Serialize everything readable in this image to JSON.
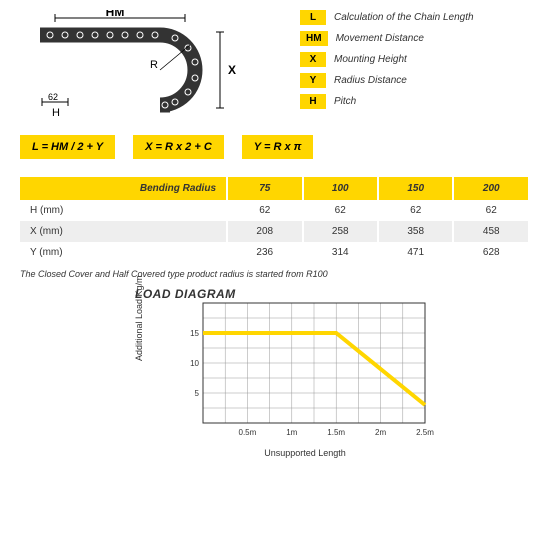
{
  "legend": [
    {
      "key": "L",
      "desc": "Calculation of the Chain Length"
    },
    {
      "key": "HM",
      "desc": "Movement Distance"
    },
    {
      "key": "X",
      "desc": "Mounting Height"
    },
    {
      "key": "Y",
      "desc": "Radius Distance"
    },
    {
      "key": "H",
      "desc": "Pitch"
    }
  ],
  "diagram": {
    "labels": {
      "top": "HM",
      "radius": "R",
      "right": "X",
      "bottomNum": "62",
      "bottomLet": "H"
    }
  },
  "formulas": [
    "L = HM / 2 + Y",
    "X = R x 2 + C",
    "Y = R x π"
  ],
  "table": {
    "headers": [
      "Bending Radius",
      "75",
      "100",
      "150",
      "200"
    ],
    "rows": [
      {
        "label": "H (mm)",
        "cells": [
          "62",
          "62",
          "62",
          "62"
        ]
      },
      {
        "label": "X (mm)",
        "cells": [
          "208",
          "258",
          "358",
          "458"
        ]
      },
      {
        "label": "Y (mm)",
        "cells": [
          "236",
          "314",
          "471",
          "628"
        ]
      }
    ]
  },
  "note": "The Closed Cover and Half Covered type product radius is started from R100",
  "chart": {
    "title": "LOAD DIAGRAM",
    "ylabel": "Additional Load\nKg/m",
    "xlabel": "Unsupported Length",
    "yTicks": [
      "5",
      "10",
      "15"
    ],
    "xTicks": [
      "0.5m",
      "1m",
      "1.5m",
      "2m",
      "2.5m"
    ],
    "lineColor": "#ffd600",
    "gridColor": "#999",
    "axisColor": "#333",
    "points": [
      [
        0,
        15
      ],
      [
        1.5,
        15
      ],
      [
        2.5,
        3
      ]
    ]
  }
}
